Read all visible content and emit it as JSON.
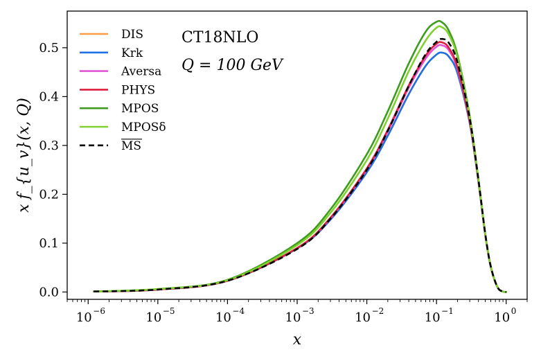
{
  "chart_data": {
    "type": "line",
    "title": "",
    "annotations": [
      "CT18NLO",
      "Q = 100 GeV"
    ],
    "xlabel": "x",
    "ylabel": "x f_{u_v}(x, Q)",
    "xscale": "log",
    "xlim": [
      5e-07,
      2
    ],
    "ylim": [
      -0.015,
      0.575
    ],
    "xticks": [
      {
        "value": 1e-06,
        "label": "10",
        "exp": "−6"
      },
      {
        "value": 1e-05,
        "label": "10",
        "exp": "−5"
      },
      {
        "value": 0.0001,
        "label": "10",
        "exp": "−4"
      },
      {
        "value": 0.001,
        "label": "10",
        "exp": "−3"
      },
      {
        "value": 0.01,
        "label": "10",
        "exp": "−2"
      },
      {
        "value": 0.1,
        "label": "10",
        "exp": "−1"
      },
      {
        "value": 1,
        "label": "10",
        "exp": "0"
      }
    ],
    "yticks": [
      {
        "value": 0.0,
        "label": "0.0"
      },
      {
        "value": 0.1,
        "label": "0.1"
      },
      {
        "value": 0.2,
        "label": "0.2"
      },
      {
        "value": 0.3,
        "label": "0.3"
      },
      {
        "value": 0.4,
        "label": "0.4"
      },
      {
        "value": 0.5,
        "label": "0.5"
      }
    ],
    "grid": false,
    "legend_position": "upper-left",
    "x": [
      1.2e-06,
      1e-05,
      0.0001,
      0.001,
      0.003,
      0.01,
      0.02,
      0.04,
      0.07,
      0.1,
      0.12,
      0.15,
      0.2,
      0.3,
      0.4,
      0.5,
      0.6,
      0.75,
      0.9,
      1.0
    ],
    "series": [
      {
        "name": "DIS",
        "color": "#ff9a45",
        "dash": "solid",
        "values": [
          0.001,
          0.005,
          0.023,
          0.089,
          0.148,
          0.245,
          0.32,
          0.405,
          0.463,
          0.486,
          0.49,
          0.482,
          0.448,
          0.345,
          0.225,
          0.118,
          0.052,
          0.01,
          0.001,
          0.0
        ]
      },
      {
        "name": "Krk",
        "color": "#1f6fe5",
        "dash": "solid",
        "values": [
          0.001,
          0.005,
          0.023,
          0.089,
          0.148,
          0.245,
          0.32,
          0.405,
          0.463,
          0.486,
          0.49,
          0.482,
          0.448,
          0.345,
          0.225,
          0.118,
          0.052,
          0.01,
          0.001,
          0.0
        ]
      },
      {
        "name": "Aversa",
        "color": "#e055d4",
        "dash": "solid",
        "values": [
          0.001,
          0.005,
          0.023,
          0.09,
          0.151,
          0.251,
          0.329,
          0.418,
          0.478,
          0.502,
          0.505,
          0.495,
          0.456,
          0.348,
          0.226,
          0.118,
          0.052,
          0.01,
          0.001,
          0.0
        ]
      },
      {
        "name": "PHYS",
        "color": "#dd1f3e",
        "dash": "solid",
        "values": [
          0.001,
          0.005,
          0.023,
          0.09,
          0.152,
          0.253,
          0.332,
          0.423,
          0.484,
          0.508,
          0.511,
          0.5,
          0.46,
          0.35,
          0.227,
          0.118,
          0.052,
          0.01,
          0.001,
          0.0
        ]
      },
      {
        "name": "MPOS",
        "color": "#3d9b1d",
        "dash": "solid",
        "values": [
          0.001,
          0.006,
          0.025,
          0.1,
          0.169,
          0.282,
          0.37,
          0.468,
          0.533,
          0.553,
          0.552,
          0.535,
          0.485,
          0.36,
          0.23,
          0.12,
          0.053,
          0.01,
          0.001,
          0.0
        ]
      },
      {
        "name": "MPOSδ",
        "color": "#7fd12e",
        "dash": "solid",
        "values": [
          0.001,
          0.006,
          0.024,
          0.096,
          0.162,
          0.27,
          0.355,
          0.452,
          0.515,
          0.541,
          0.542,
          0.527,
          0.48,
          0.357,
          0.229,
          0.119,
          0.053,
          0.01,
          0.001,
          0.0
        ]
      },
      {
        "name": "MS",
        "color": "#000000",
        "dash": "dashed",
        "values": [
          0.001,
          0.005,
          0.023,
          0.088,
          0.15,
          0.25,
          0.33,
          0.422,
          0.487,
          0.512,
          0.518,
          0.51,
          0.47,
          0.355,
          0.23,
          0.12,
          0.053,
          0.01,
          0.001,
          0.0
        ]
      }
    ]
  }
}
